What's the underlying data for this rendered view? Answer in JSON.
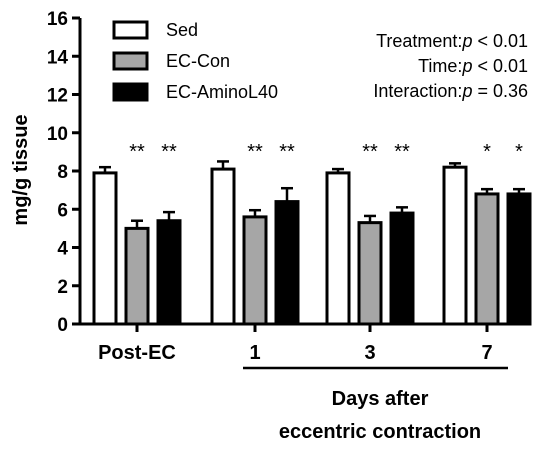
{
  "chart_data": {
    "type": "bar",
    "ylabel": "mg/g tissue",
    "ylim": [
      0,
      16
    ],
    "yticks": [
      0,
      2,
      4,
      6,
      8,
      10,
      12,
      14,
      16
    ],
    "categories": [
      "Post-EC",
      "1",
      "3",
      "7"
    ],
    "xgroup_label_line1": "Days after",
    "xgroup_label_line2": "eccentric contraction",
    "series": [
      {
        "name": "Sed",
        "color": "#ffffff",
        "values": [
          7.9,
          8.1,
          7.9,
          8.2
        ],
        "errors": [
          0.3,
          0.4,
          0.2,
          0.2
        ]
      },
      {
        "name": "EC-Con",
        "color": "#a6a6a6",
        "values": [
          5.0,
          5.6,
          5.3,
          6.8
        ],
        "errors": [
          0.4,
          0.35,
          0.35,
          0.25
        ]
      },
      {
        "name": "EC-AminoL40",
        "color": "#000000",
        "values": [
          5.4,
          6.4,
          5.8,
          6.8
        ],
        "errors": [
          0.45,
          0.7,
          0.3,
          0.25
        ]
      }
    ],
    "significance": [
      [
        "",
        "**",
        "**"
      ],
      [
        "",
        "**",
        "**"
      ],
      [
        "",
        "**",
        "**"
      ],
      [
        "",
        "*",
        "*"
      ]
    ],
    "stats": [
      {
        "label": "Treatment:",
        "p_sym": "p",
        "rest": " < 0.01"
      },
      {
        "label": "Time:",
        "p_sym": "p",
        "rest": " < 0.01"
      },
      {
        "label": "Interaction:",
        "p_sym": "p",
        "rest": " = 0.36"
      }
    ],
    "legend_position": "top-left"
  }
}
